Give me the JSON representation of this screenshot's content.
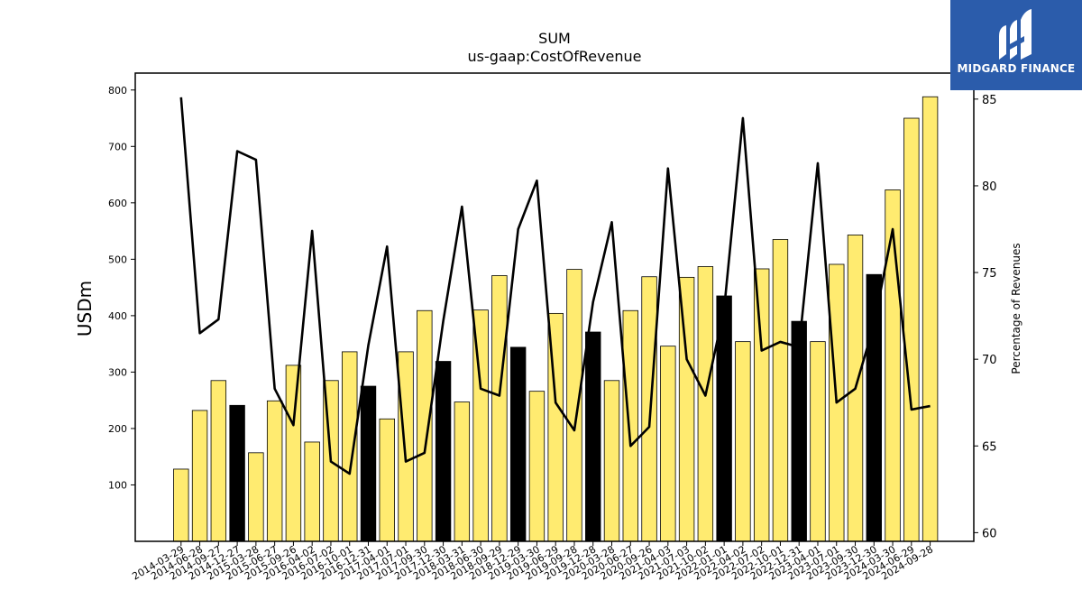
{
  "chart_data": {
    "type": "bar",
    "title": "SUM",
    "subtitle": "us-gaap:CostOfRevenue",
    "ylabel": "USDm",
    "y2label": "Percentage of Revenues",
    "ylim": [
      0,
      830
    ],
    "y2lim": [
      59.5,
      86.5
    ],
    "yticks": [
      100,
      200,
      300,
      400,
      500,
      600,
      700,
      800
    ],
    "y2ticks": [
      60,
      65,
      70,
      75,
      80,
      85
    ],
    "colors": {
      "bar": "#ffeb70",
      "highlight": "#000000",
      "edge": "#000000",
      "line": "#000000"
    },
    "categories": [
      "2014-03-29",
      "2014-06-28",
      "2014-09-27",
      "2014-12-27",
      "2015-03-28",
      "2015-06-27",
      "2015-09-26",
      "2016-04-02",
      "2016-07-02",
      "2016-10-01",
      "2016-12-31",
      "2017-04-01",
      "2017-07-01",
      "2017-09-30",
      "2017-12-30",
      "2018-03-31",
      "2018-06-30",
      "2018-09-29",
      "2018-12-29",
      "2019-03-30",
      "2019-06-29",
      "2019-09-28",
      "2019-12-28",
      "2020-03-28",
      "2020-06-27",
      "2020-09-26",
      "2021-04-03",
      "2021-07-03",
      "2021-10-02",
      "2022-01-01",
      "2022-04-02",
      "2022-07-02",
      "2022-10-01",
      "2022-12-31",
      "2023-04-01",
      "2023-07-01",
      "2023-09-30",
      "2023-12-30",
      "2024-03-30",
      "2024-06-29",
      "2024-09-28"
    ],
    "series": [
      {
        "type": "bar",
        "values": [
          128,
          232,
          285,
          241,
          157,
          249,
          312,
          176,
          285,
          336,
          275,
          217,
          336,
          409,
          319,
          247,
          410,
          471,
          344,
          266,
          404,
          482,
          371,
          285,
          409,
          469,
          346,
          468,
          487,
          435,
          354,
          483,
          535,
          390,
          354,
          491,
          543,
          473,
          623,
          750,
          788
        ],
        "highlight": [
          false,
          false,
          false,
          true,
          false,
          false,
          false,
          false,
          false,
          false,
          true,
          false,
          false,
          false,
          true,
          false,
          false,
          false,
          true,
          false,
          false,
          false,
          true,
          false,
          false,
          false,
          false,
          false,
          false,
          true,
          false,
          false,
          false,
          true,
          false,
          false,
          false,
          true,
          false,
          false,
          false
        ]
      },
      {
        "type": "line",
        "axis": "right",
        "values": [
          85.1,
          71.5,
          72.3,
          82.0,
          81.5,
          68.3,
          66.2,
          77.4,
          64.1,
          63.4,
          70.8,
          76.5,
          64.1,
          64.6,
          72.2,
          78.8,
          68.3,
          67.9,
          77.5,
          80.3,
          67.5,
          65.9,
          73.3,
          77.9,
          65.0,
          66.1,
          81.0,
          70.0,
          67.9,
          72.9,
          83.9,
          70.5,
          71.0,
          70.7,
          81.3,
          67.5,
          68.3,
          72.0,
          77.5,
          67.1,
          67.3
        ]
      }
    ]
  },
  "brand": {
    "name": "MIDGARD FINANCE"
  }
}
